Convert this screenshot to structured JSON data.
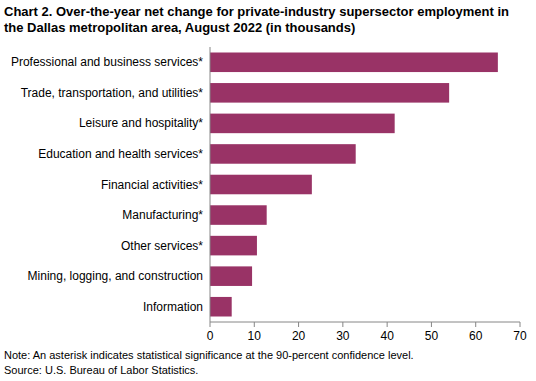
{
  "chart_data": {
    "type": "bar",
    "title": "Chart 2. Over-the-year net change for private-industry supersector employment in the Dallas metropolitan area, August 2022 (in thousands)",
    "categories": [
      "Professional and business services*",
      "Trade, transportation, and utilities*",
      "Leisure and hospitality*",
      "Education and health services*",
      "Financial activities*",
      "Manufacturing*",
      "Other services*",
      "Mining, logging, and construction",
      "Information"
    ],
    "values": [
      65,
      54,
      41.7,
      32.9,
      23,
      12.8,
      10.6,
      9.5,
      4.9
    ],
    "color": "#993366",
    "orientation": "horizontal",
    "xlim": [
      0,
      70
    ],
    "xticks": [
      0,
      10,
      20,
      30,
      40,
      50,
      60,
      70
    ],
    "grid": false,
    "annotations": [
      "Note: An asterisk indicates statistical significance at the 90-percent confidence level.",
      "Source: U.S. Bureau of Labor Statistics."
    ]
  }
}
